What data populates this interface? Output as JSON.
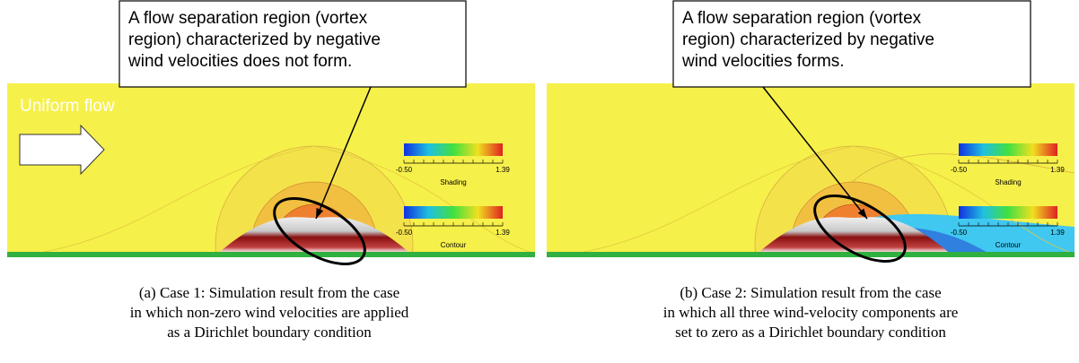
{
  "panels": [
    {
      "callout": [
        "A flow separation region (vortex",
        "region) characterized by negative",
        "wind velocities does not form."
      ],
      "flow_label": "Uniform flow",
      "colorbar": {
        "min": "-0.50",
        "max": "1.39",
        "shading": "Shading",
        "contour": "Contour"
      },
      "caption": [
        "(a) Case 1: Simulation result from the case",
        "in which non-zero wind velocities are applied",
        "as a Dirichlet boundary condition"
      ]
    },
    {
      "callout": [
        "A flow separation region (vortex",
        "region) characterized by negative",
        "wind velocities forms."
      ],
      "colorbar": {
        "min": "-0.50",
        "max": "1.39",
        "shading": "Shading",
        "contour": "Contour"
      },
      "caption": [
        "(b) Case 2: Simulation result from the case",
        "in which all three wind-velocity components are",
        "set to zero as a Dirichlet boundary condition"
      ]
    }
  ]
}
